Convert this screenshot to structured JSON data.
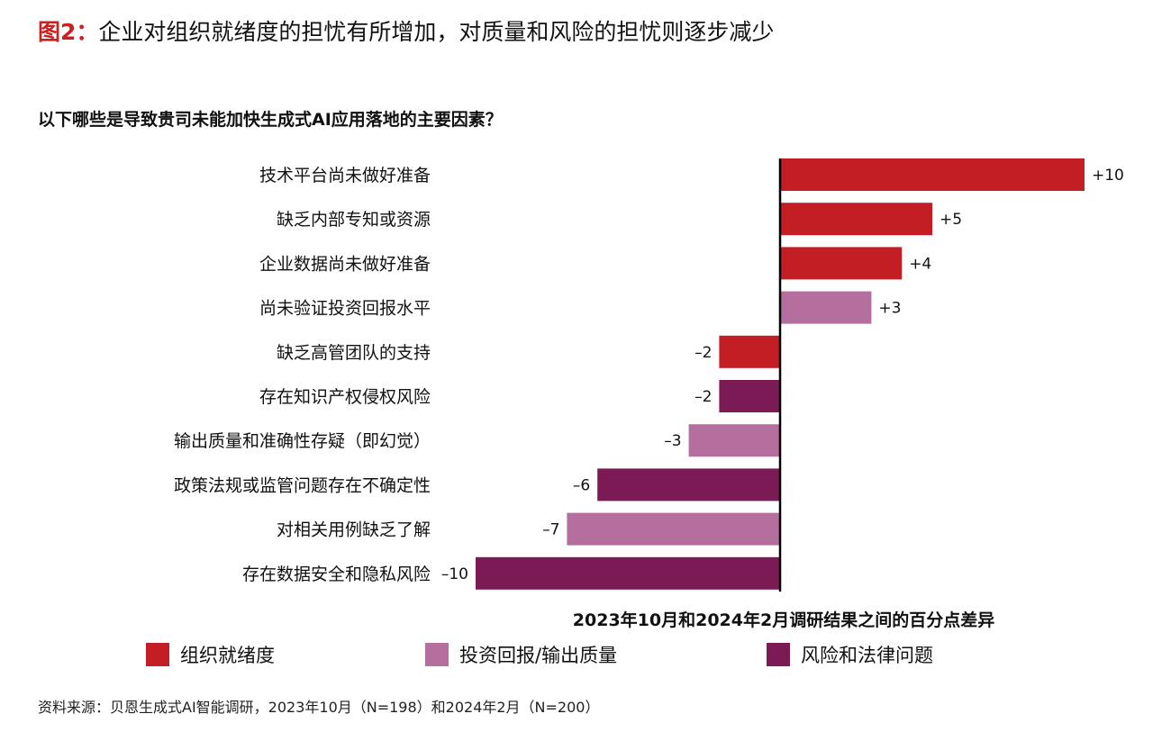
{
  "header": {
    "figure_number": "图2：",
    "title": "企业对组织就绪度的担忧有所增加，对质量和风险的担忧则逐步减少"
  },
  "colors": {
    "组织就绪度": "#c41e25",
    "投资回报/输出质量": "#b56f9f",
    "风险和法律问题": "#7b1a55"
  },
  "chart_data": {
    "type": "bar",
    "orientation": "horizontal",
    "title": "以下哪些是导致贵司未能加快生成式AI应用落地的主要因素？",
    "xlabel": "2023年10月和2024年2月调研结果之间的百分点差异",
    "ylabel": "",
    "xlim": [
      -10,
      10
    ],
    "categories": [
      "技术平台尚未做好准备",
      "缺乏内部专知或资源",
      "企业数据尚未做好准备",
      "尚未验证投资回报水平",
      "缺乏高管团队的支持",
      "存在知识产权侵权风险",
      "输出质量和准确性存疑（即幻觉）",
      "政策法规或监管问题存在不确定性",
      "对相关用例缺乏了解",
      "存在数据安全和隐私风险"
    ],
    "values": [
      10,
      5,
      4,
      3,
      -2,
      -2,
      -3,
      -6,
      -7,
      -10
    ],
    "value_labels": [
      "+10",
      "+5",
      "+4",
      "+3",
      "–2",
      "–2",
      "–3",
      "–6",
      "–7",
      "–10"
    ],
    "groups": [
      "组织就绪度",
      "组织就绪度",
      "组织就绪度",
      "投资回报/输出质量",
      "组织就绪度",
      "风险和法律问题",
      "投资回报/输出质量",
      "风险和法律问题",
      "投资回报/输出质量",
      "风险和法律问题"
    ],
    "legend": [
      {
        "name": "组织就绪度",
        "color": "#c41e25"
      },
      {
        "name": "投资回报/输出质量",
        "color": "#b56f9f"
      },
      {
        "name": "风险和法律问题",
        "color": "#7b1a55"
      }
    ],
    "legend_position": "bottom",
    "grid": false
  },
  "footer": {
    "source": "资料来源：贝恩生成式AI智能调研，2023年10月（N=198）和2024年2月（N=200）"
  }
}
